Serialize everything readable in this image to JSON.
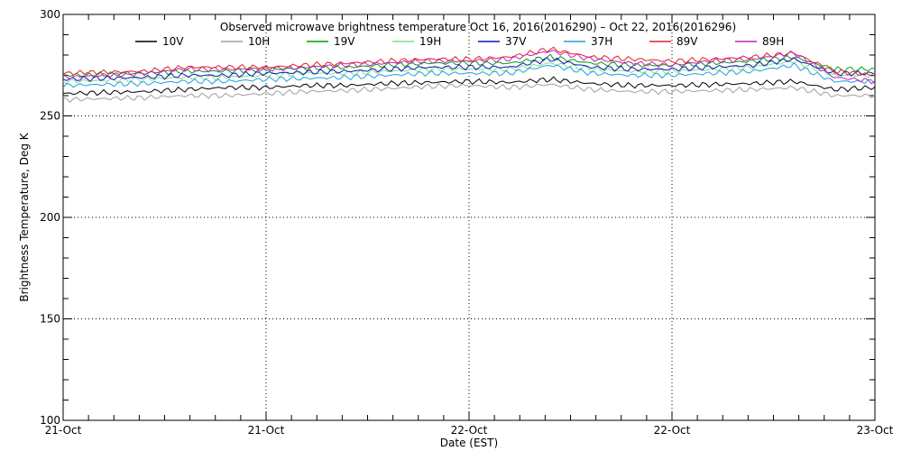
{
  "chart_data": {
    "type": "line",
    "title": "Observed microwave brightness temperature Oct 16, 2016(2016290) – Oct 22, 2016(2016296)",
    "xlabel": "Date (EST)",
    "ylabel": "Brightness Temperature, Deg K",
    "ylim": [
      100,
      300
    ],
    "yticks": [
      100,
      150,
      200,
      250,
      300
    ],
    "xlim": [
      0,
      8
    ],
    "xticks": [
      {
        "x": 0,
        "label": "21-Oct"
      },
      {
        "x": 2,
        "label": "21-Oct"
      },
      {
        "x": 4,
        "label": "22-Oct"
      },
      {
        "x": 6,
        "label": "22-Oct"
      },
      {
        "x": 8,
        "label": "23-Oct"
      }
    ],
    "grid": true,
    "legend_position": "top",
    "x": [
      0,
      0.4,
      0.8,
      1.2,
      1.6,
      2.0,
      2.4,
      2.8,
      3.2,
      3.6,
      4.0,
      4.4,
      4.8,
      5.2,
      5.6,
      6.0,
      6.4,
      6.8,
      7.2,
      7.6,
      8.0
    ],
    "series": [
      {
        "name": "10V",
        "color": "#000000",
        "values": [
          261,
          261.5,
          262,
          263,
          264,
          264,
          265,
          265,
          266,
          266.5,
          267,
          266.5,
          268,
          266,
          265,
          265,
          265.5,
          266,
          267,
          263,
          264
        ]
      },
      {
        "name": "10H",
        "color": "#a0a0a0",
        "values": [
          258,
          258.5,
          259,
          260,
          260,
          261,
          262,
          262.5,
          263.5,
          264.5,
          265,
          264,
          265.5,
          263,
          262,
          262,
          262.5,
          263,
          264,
          260,
          260
        ]
      },
      {
        "name": "19V",
        "color": "#00a000",
        "values": [
          270,
          270.5,
          271,
          272,
          272,
          273,
          273.5,
          274,
          275,
          276,
          276,
          276,
          279,
          276,
          275,
          275,
          276,
          277,
          279,
          273,
          273
        ]
      },
      {
        "name": "19H",
        "color": "#80e080",
        "values": [
          267,
          267.5,
          268,
          269,
          269,
          270,
          271,
          271,
          272,
          273,
          273,
          273,
          276,
          273,
          272,
          272,
          273,
          274,
          277,
          270,
          270
        ]
      },
      {
        "name": "37V",
        "color": "#1010c0",
        "values": [
          268,
          268.5,
          269,
          270,
          270,
          271,
          271.5,
          272,
          273,
          274,
          274,
          274,
          278,
          274,
          273,
          273,
          274,
          275,
          278,
          271,
          271
        ]
      },
      {
        "name": "37H",
        "color": "#20a0e0",
        "values": [
          265,
          265.5,
          266,
          267,
          267,
          268,
          268.5,
          269,
          270,
          271,
          271,
          271,
          275,
          271,
          270,
          270,
          271,
          272,
          275,
          267,
          267
        ]
      },
      {
        "name": "89V",
        "color": "#e02020",
        "values": [
          271,
          271.5,
          272,
          274,
          274,
          274,
          275,
          276,
          277,
          278,
          278,
          279,
          283,
          279,
          278,
          277,
          278,
          279,
          281,
          272,
          270
        ]
      },
      {
        "name": "89H",
        "color": "#c020c0",
        "values": [
          269,
          270,
          271,
          273,
          273,
          273,
          274,
          275,
          276,
          277,
          277,
          278,
          282,
          278,
          276,
          275,
          277,
          278,
          281,
          269,
          267
        ]
      }
    ]
  }
}
